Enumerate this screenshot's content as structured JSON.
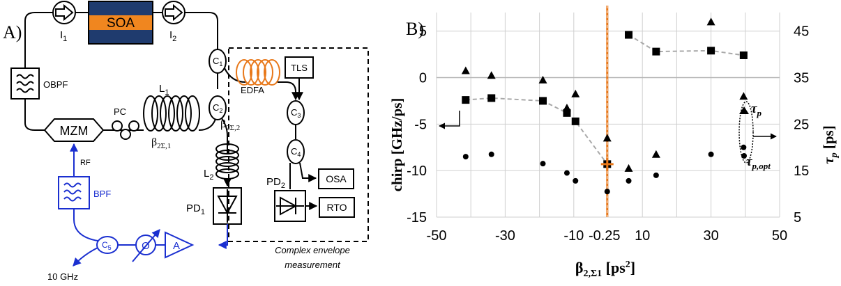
{
  "panel_a": {
    "label": "A)",
    "components": {
      "soa": "SOA",
      "isolator1": "I",
      "isolator1_sub": "1",
      "isolator2": "I",
      "isolator2_sub": "2",
      "obpf": "OBPF",
      "mzm": "MZM",
      "pc": "PC",
      "l1": "L",
      "l1_sub": "1",
      "beta1": "β",
      "beta1_sub": "2Σ,1",
      "c1": "C",
      "c1_sub": "1",
      "c2": "C",
      "c2_sub": "2",
      "beta2": "β",
      "beta2_sub": "2Σ,2",
      "l2": "L",
      "l2_sub": "2",
      "pd1": "PD",
      "pd1_sub": "1",
      "rf": "RF",
      "bpf": "BPF",
      "c5": "C",
      "c5_sub": "5",
      "phase": "Ø",
      "amp": "A",
      "ten_ghz": "10 GHz",
      "edfa": "EDFA",
      "tls": "TLS",
      "c3": "C",
      "c3_sub": "3",
      "c4": "C",
      "c4_sub": "4",
      "pd2": "PD",
      "pd2_sub": "2",
      "osa": "OSA",
      "rto": "RTO",
      "box_caption_line1": "Complex envelope",
      "box_caption_line2": "measurement"
    },
    "colors": {
      "soa_fill": "#1f3b6e",
      "soa_stripe": "#f0861f",
      "edfa": "#e8781a",
      "rf_path": "#1a2fd0"
    }
  },
  "chart_data": {
    "type": "scatter",
    "panel_label": "B)",
    "xlabel": "β",
    "xlabel_sub": "2,Σ1",
    "xlabel_unit": "[ps",
    "xlabel_unit_sup": "2",
    "xlabel_unit_end": "]",
    "ylabel_left": "chirp [GHz/ps]",
    "ylabel_right": "τ",
    "ylabel_right_sub": "p",
    "ylabel_right_unit": "[ps]",
    "xlim": [
      -50,
      50
    ],
    "ylim_left": [
      -15,
      7
    ],
    "ylim_right": [
      5,
      49
    ],
    "x_ticks": [
      "-50",
      "-30",
      "-10",
      "10",
      "30",
      "50"
    ],
    "x_tick_values": [
      -50,
      -30,
      -10,
      10,
      30,
      50
    ],
    "x_special_tick": "-0.25",
    "x_special_value": -0.25,
    "y_left_ticks": [
      "5",
      "0",
      "-5",
      "-10",
      "-15"
    ],
    "y_left_values": [
      5,
      0,
      -5,
      -10,
      -15
    ],
    "y_right_ticks": [
      "45",
      "35",
      "25",
      "15",
      "5"
    ],
    "y_right_values": [
      45,
      35,
      25,
      15,
      5
    ],
    "grid": true,
    "chirp_series": {
      "axis": "left",
      "marker": "square",
      "x": [
        -41.5,
        -34,
        -19,
        -12,
        -9.5,
        -0.25,
        6,
        14,
        30,
        39.5
      ],
      "y": [
        -2.4,
        -2.2,
        -2.5,
        -3.8,
        -4.7,
        -9.3,
        4.6,
        2.8,
        2.9,
        2.4
      ]
    },
    "tau_p_series": {
      "name": "τ",
      "name_sub": "p",
      "axis": "right",
      "marker": "triangle",
      "x": [
        -41.5,
        -34,
        -19,
        -12,
        -9.5,
        -0.25,
        6,
        14,
        30,
        39.5
      ],
      "y": [
        36.5,
        35.5,
        34.5,
        28.5,
        31.5,
        22,
        15.5,
        18.5,
        47,
        31
      ]
    },
    "tau_p_opt_series": {
      "name": "τ",
      "name_sub": "p,opt",
      "axis": "right",
      "marker": "circle",
      "x": [
        -41.5,
        -34,
        -19,
        -12,
        -9.5,
        -0.25,
        6,
        14,
        30,
        39.5
      ],
      "y": [
        18,
        18.5,
        16.5,
        14.5,
        12.8,
        10.5,
        12.8,
        14,
        18.5,
        20
      ]
    },
    "optimum_marker": {
      "x": -0.25,
      "y": -9.3,
      "color": "#e8781a"
    },
    "colors": {
      "vline": "#e8781a",
      "dash": "#a9a9a9",
      "marker": "#000000"
    }
  }
}
